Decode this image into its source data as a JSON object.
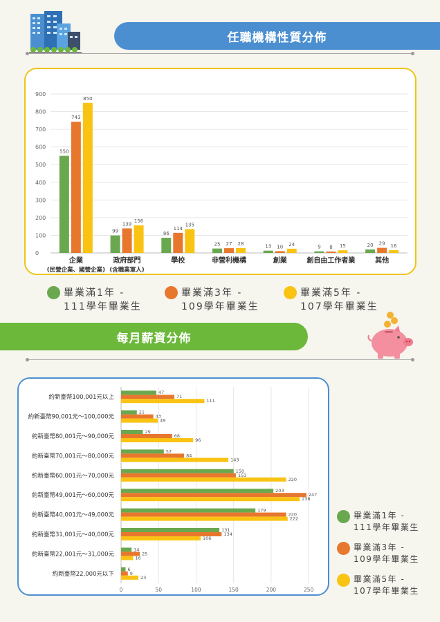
{
  "header1": {
    "title": "任職機構性質分佈"
  },
  "header2": {
    "title": "每月薪資分佈"
  },
  "colors": {
    "s1": "#6aa84f",
    "s2": "#e8772e",
    "s3": "#f9c313",
    "blue": "#4b8fd1",
    "green": "#6cb83a",
    "yellow": "#f0c419"
  },
  "legend": [
    {
      "line1": "畢業滿1年 -",
      "line2": "111學年畢業生",
      "color": "#6aa84f"
    },
    {
      "line1": "畢業滿3年 -",
      "line2": "109學年畢業生",
      "color": "#e8772e"
    },
    {
      "line1": "畢業滿5年 -",
      "line2": "107學年畢業生",
      "color": "#f9c313"
    }
  ],
  "chart_data": [
    {
      "type": "bar",
      "categories": [
        "企業\n(民營企業、國營企業)",
        "政府部門\n(含職業軍人)",
        "學校",
        "非營利機構",
        "創業",
        "創自由工作者業",
        "其他"
      ],
      "series": [
        {
          "name": "畢業滿1年 - 111學年畢業生",
          "values": [
            550,
            99,
            86,
            25,
            13,
            9,
            20
          ]
        },
        {
          "name": "畢業滿3年 - 109學年畢業生",
          "values": [
            743,
            139,
            114,
            27,
            10,
            8,
            29
          ]
        },
        {
          "name": "畢業滿5年 - 107學年畢業生",
          "values": [
            850,
            156,
            135,
            28,
            24,
            15,
            16
          ]
        }
      ],
      "ylim": [
        0,
        900
      ],
      "yticks": [
        0,
        100,
        200,
        300,
        400,
        500,
        600,
        700,
        800,
        900
      ],
      "grid": true,
      "legend_position": "bottom"
    },
    {
      "type": "bar",
      "orientation": "horizontal",
      "categories": [
        "約新臺幣100,001元以上",
        "約新臺幣90,001元～100,000元",
        "約新臺幣80,001元～90,000元",
        "約新臺幣70,001元～80,000元",
        "約新臺幣60,001元～70,000元",
        "約新臺幣49,001元～60,000元",
        "約新臺幣40,001元～49,000元",
        "約新臺幣31,001元～40,000元",
        "約新臺幣22,001元～31,000元",
        "約新臺幣22,000元以下"
      ],
      "series": [
        {
          "name": "畢業滿1年 - 111學年畢業生",
          "values": [
            47,
            21,
            29,
            57,
            150,
            203,
            179,
            131,
            14,
            6
          ]
        },
        {
          "name": "畢業滿3年 - 109學年畢業生",
          "values": [
            71,
            43,
            68,
            84,
            153,
            247,
            220,
            134,
            25,
            9
          ]
        },
        {
          "name": "畢業滿5年 - 107學年畢業生",
          "values": [
            111,
            49,
            96,
            143,
            220,
            238,
            222,
            106,
            16,
            23
          ]
        }
      ],
      "xlim": [
        0,
        260
      ],
      "xticks": [
        0,
        50,
        100,
        150,
        200,
        250
      ],
      "grid": true,
      "legend_position": "right"
    }
  ]
}
